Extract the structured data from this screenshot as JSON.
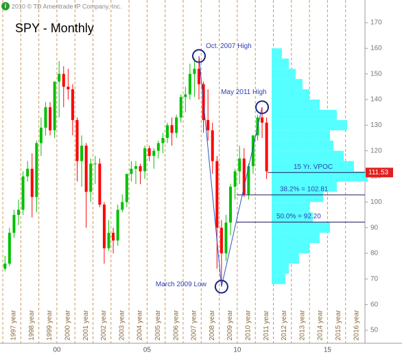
{
  "chart_data": {
    "type": "candlestick",
    "copyright": "2010 © TD Ameritrade IP Company, Inc.",
    "title": "SPY - Monthly",
    "x": [
      1997,
      1997.25,
      1997.5,
      1997.75,
      1998,
      1998.25,
      1998.5,
      1998.75,
      1999,
      1999.25,
      1999.5,
      1999.75,
      2000,
      2000.25,
      2000.5,
      2000.75,
      2001,
      2001.25,
      2001.5,
      2001.75,
      2002,
      2002.25,
      2002.5,
      2002.75,
      2003,
      2003.25,
      2003.5,
      2003.75,
      2004,
      2004.25,
      2004.5,
      2004.75,
      2005,
      2005.25,
      2005.5,
      2005.75,
      2006,
      2006.25,
      2006.5,
      2006.75,
      2007,
      2007.25,
      2007.5,
      2007.75,
      2008,
      2008.25,
      2008.5,
      2008.75,
      2009,
      2009.25,
      2009.5,
      2009.75,
      2010,
      2010.25,
      2010.5,
      2010.75,
      2011,
      2011.25,
      2011.5
    ],
    "open": [
      74,
      76,
      88,
      95,
      97,
      110,
      113,
      102,
      123,
      129,
      137,
      128,
      147,
      150,
      145,
      144,
      132,
      116,
      122,
      104,
      115,
      115,
      99,
      82,
      88,
      85,
      97,
      100,
      111,
      113,
      114,
      112,
      121,
      118,
      120,
      123,
      125,
      130,
      127,
      133,
      141,
      142,
      150,
      152,
      146,
      132,
      128,
      116,
      90,
      80,
      92,
      106,
      112,
      117,
      103,
      114,
      126,
      133,
      131
    ],
    "high": [
      79,
      90,
      97,
      101,
      112,
      116,
      119,
      124,
      133,
      139,
      139,
      147,
      155,
      153,
      152,
      146,
      133,
      126,
      123,
      117,
      118,
      117,
      100,
      93,
      90,
      99,
      103,
      111,
      116,
      116,
      115,
      122,
      122,
      121,
      124,
      127,
      131,
      133,
      134,
      142,
      145,
      154,
      156,
      157,
      147,
      144,
      131,
      118,
      93,
      95,
      107,
      113,
      122,
      121,
      115,
      126,
      134,
      137,
      133
    ],
    "low": [
      73,
      75,
      86,
      91,
      95,
      108,
      94,
      96,
      118,
      126,
      126,
      125,
      133,
      137,
      140,
      126,
      108,
      106,
      90,
      100,
      107,
      98,
      76,
      81,
      80,
      83,
      96,
      98,
      108,
      107,
      107,
      109,
      116,
      113,
      117,
      119,
      123,
      122,
      125,
      131,
      135,
      140,
      141,
      140,
      127,
      124,
      111,
      74,
      67,
      77,
      87,
      101,
      107,
      102,
      101,
      111,
      124,
      125,
      109
    ],
    "close": [
      76,
      88,
      95,
      97,
      110,
      113,
      102,
      123,
      129,
      137,
      128,
      147,
      150,
      145,
      144,
      132,
      116,
      122,
      104,
      115,
      115,
      99,
      82,
      88,
      85,
      97,
      100,
      111,
      113,
      114,
      112,
      121,
      118,
      120,
      123,
      125,
      130,
      127,
      133,
      141,
      142,
      150,
      152,
      146,
      132,
      128,
      116,
      90,
      80,
      92,
      106,
      112,
      117,
      103,
      114,
      126,
      133,
      131,
      112
    ],
    "up_color": "#00c000",
    "down_color": "#ff0000",
    "xlim": [
      1997,
      2017
    ],
    "xticks": [
      {
        "value": 1997,
        "label": "1997 year"
      },
      {
        "value": 1998,
        "label": "1998 year"
      },
      {
        "value": 1999,
        "label": "1999 year"
      },
      {
        "value": 2000,
        "label": "2000 year"
      },
      {
        "value": 2001,
        "label": "2001 year"
      },
      {
        "value": 2002,
        "label": "2002 year"
      },
      {
        "value": 2003,
        "label": "2003 year"
      },
      {
        "value": 2004,
        "label": "2004 year"
      },
      {
        "value": 2005,
        "label": "2005 year"
      },
      {
        "value": 2006,
        "label": "2006 year"
      },
      {
        "value": 2007,
        "label": "2007 year"
      },
      {
        "value": 2008,
        "label": "2008 year"
      },
      {
        "value": 2009,
        "label": "2009 year"
      },
      {
        "value": 2010,
        "label": "2010 year"
      },
      {
        "value": 2011,
        "label": "2011 year"
      },
      {
        "value": 2012,
        "label": "2012 year"
      },
      {
        "value": 2013,
        "label": "2013 year"
      },
      {
        "value": 2014,
        "label": "2014 year"
      },
      {
        "value": 2015,
        "label": "2015 year"
      },
      {
        "value": 2016,
        "label": "2016 year"
      }
    ],
    "x2ticks": [
      {
        "value": 2000,
        "label": "00"
      },
      {
        "value": 2005,
        "label": "05"
      },
      {
        "value": 2010,
        "label": "10"
      },
      {
        "value": 2015,
        "label": "15"
      }
    ],
    "ylim": [
      50,
      170
    ],
    "yticks": [
      50,
      60,
      70,
      80,
      90,
      100,
      110,
      120,
      130,
      140,
      150,
      160,
      170
    ],
    "profile": {
      "color": "#55ffff",
      "bins": [
        68,
        72,
        76,
        80,
        84,
        88,
        92,
        96,
        100,
        104,
        108,
        112,
        116,
        120,
        124,
        128,
        132,
        136,
        140,
        144,
        148,
        152,
        156,
        160
      ],
      "volumes": [
        20,
        25,
        40,
        55,
        70,
        85,
        60,
        55,
        75,
        95,
        140,
        120,
        105,
        90,
        85,
        110,
        95,
        70,
        55,
        45,
        35,
        25,
        15
      ]
    },
    "levels": [
      {
        "value": 111.53,
        "label": "15 Yr. VPOC"
      },
      {
        "value": 102.81,
        "label": "38.2% = 102.81"
      },
      {
        "value": 92.2,
        "label": "50.0% = 92.20"
      }
    ],
    "annotations": [
      "Oct. 2007 High",
      "May 2011 High",
      "March 2009 Low"
    ]
  }
}
